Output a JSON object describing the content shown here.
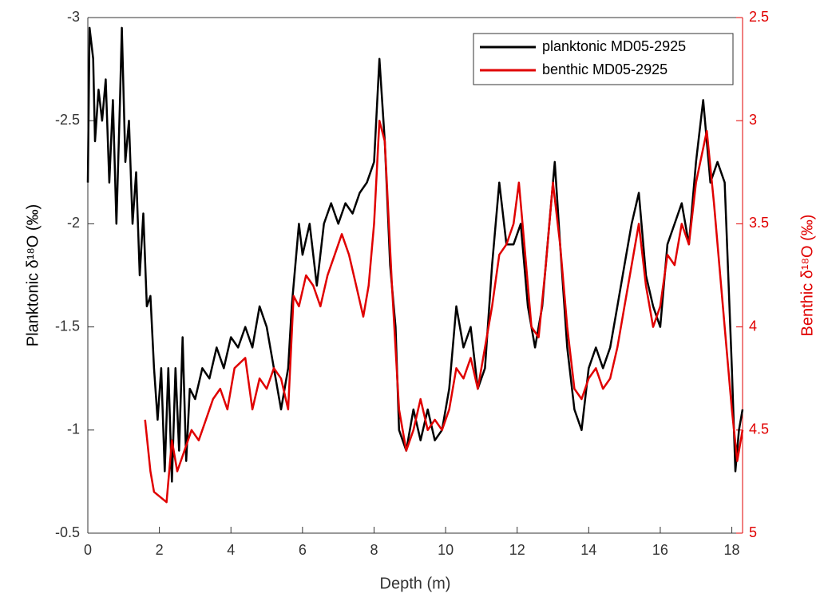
{
  "chart_data": {
    "type": "line",
    "xlabel": "Depth (m)",
    "ylabel": "Planktonic δ¹⁸O (‰)",
    "y2label": "Benthic δ¹⁸O (‰)",
    "xlim": [
      0,
      18.3
    ],
    "xticks": [
      0,
      2,
      4,
      6,
      8,
      10,
      12,
      14,
      16,
      18
    ],
    "ylim": [
      -0.5,
      -3
    ],
    "yticks": [
      -3,
      -2.5,
      -2,
      -1.5,
      -1,
      -0.5
    ],
    "y2lim": [
      5,
      2.5
    ],
    "y2ticks": [
      2.5,
      3,
      3.5,
      4,
      4.5,
      5
    ],
    "y2color": "#e00000",
    "legend": "upper right",
    "series": [
      {
        "name": "planktonic MD05-2925",
        "color": "#000000",
        "x": [
          0,
          0.05,
          0.15,
          0.2,
          0.3,
          0.4,
          0.5,
          0.6,
          0.7,
          0.8,
          0.9,
          0.95,
          1.05,
          1.15,
          1.25,
          1.35,
          1.45,
          1.55,
          1.65,
          1.75,
          1.85,
          1.95,
          2.05,
          2.15,
          2.25,
          2.35,
          2.45,
          2.55,
          2.65,
          2.75,
          2.85,
          3.0,
          3.2,
          3.4,
          3.6,
          3.8,
          4.0,
          4.2,
          4.4,
          4.6,
          4.8,
          5.0,
          5.2,
          5.4,
          5.6,
          5.7,
          5.8,
          5.9,
          6.0,
          6.2,
          6.4,
          6.6,
          6.8,
          7.0,
          7.2,
          7.4,
          7.6,
          7.8,
          8.0,
          8.15,
          8.3,
          8.45,
          8.6,
          8.7,
          8.9,
          9.1,
          9.3,
          9.5,
          9.7,
          9.9,
          10.1,
          10.3,
          10.5,
          10.7,
          10.9,
          11.1,
          11.3,
          11.5,
          11.7,
          11.9,
          12.1,
          12.3,
          12.5,
          12.7,
          12.9,
          13.05,
          13.2,
          13.4,
          13.6,
          13.8,
          14.0,
          14.2,
          14.4,
          14.6,
          14.8,
          15.0,
          15.2,
          15.4,
          15.6,
          15.8,
          16.0,
          16.2,
          16.4,
          16.6,
          16.8,
          17.0,
          17.2,
          17.4,
          17.6,
          17.8,
          18.0,
          18.1,
          18.2,
          18.3
        ],
        "values": [
          -2.2,
          -2.95,
          -2.8,
          -2.4,
          -2.65,
          -2.5,
          -2.7,
          -2.2,
          -2.6,
          -2.0,
          -2.6,
          -2.95,
          -2.3,
          -2.5,
          -2.0,
          -2.25,
          -1.75,
          -2.05,
          -1.6,
          -1.65,
          -1.3,
          -1.05,
          -1.3,
          -0.8,
          -1.3,
          -0.75,
          -1.3,
          -0.9,
          -1.45,
          -0.85,
          -1.2,
          -1.15,
          -1.3,
          -1.25,
          -1.4,
          -1.3,
          -1.45,
          -1.4,
          -1.5,
          -1.4,
          -1.6,
          -1.5,
          -1.3,
          -1.1,
          -1.3,
          -1.6,
          -1.8,
          -2.0,
          -1.85,
          -2.0,
          -1.7,
          -2.0,
          -2.1,
          -2.0,
          -2.1,
          -2.05,
          -2.15,
          -2.2,
          -2.3,
          -2.8,
          -2.4,
          -1.8,
          -1.5,
          -1.0,
          -0.9,
          -1.1,
          -0.95,
          -1.1,
          -0.95,
          -1.0,
          -1.2,
          -1.6,
          -1.4,
          -1.5,
          -1.2,
          -1.3,
          -1.8,
          -2.2,
          -1.9,
          -1.9,
          -2.0,
          -1.6,
          -1.4,
          -1.6,
          -2.0,
          -2.3,
          -1.9,
          -1.4,
          -1.1,
          -1.0,
          -1.3,
          -1.4,
          -1.3,
          -1.4,
          -1.6,
          -1.8,
          -2.0,
          -2.15,
          -1.75,
          -1.6,
          -1.5,
          -1.9,
          -2.0,
          -2.1,
          -1.9,
          -2.3,
          -2.6,
          -2.2,
          -2.3,
          -2.2,
          -1.3,
          -0.8,
          -1.0,
          -1.1
        ]
      },
      {
        "name": "benthic MD05-2925",
        "color": "#e00000",
        "axis": "y2",
        "x": [
          1.6,
          1.75,
          1.85,
          2.2,
          2.35,
          2.5,
          2.7,
          2.9,
          3.1,
          3.3,
          3.5,
          3.7,
          3.9,
          4.1,
          4.4,
          4.6,
          4.8,
          5.0,
          5.2,
          5.4,
          5.6,
          5.75,
          5.9,
          6.1,
          6.3,
          6.5,
          6.7,
          6.9,
          7.1,
          7.3,
          7.5,
          7.7,
          7.85,
          8.0,
          8.15,
          8.3,
          8.5,
          8.7,
          8.9,
          9.1,
          9.3,
          9.5,
          9.7,
          9.9,
          10.1,
          10.3,
          10.5,
          10.7,
          10.9,
          11.1,
          11.3,
          11.5,
          11.7,
          11.9,
          12.05,
          12.2,
          12.4,
          12.6,
          12.8,
          13.0,
          13.2,
          13.4,
          13.6,
          13.8,
          14.0,
          14.2,
          14.4,
          14.6,
          14.8,
          15.0,
          15.2,
          15.4,
          15.6,
          15.8,
          16.0,
          16.2,
          16.4,
          16.6,
          16.8,
          17.0,
          17.3,
          17.5,
          17.8,
          18.0,
          18.15,
          18.3
        ],
        "values": [
          4.45,
          4.7,
          4.8,
          4.85,
          4.55,
          4.7,
          4.6,
          4.5,
          4.55,
          4.45,
          4.35,
          4.3,
          4.4,
          4.2,
          4.15,
          4.4,
          4.25,
          4.3,
          4.2,
          4.25,
          4.4,
          3.85,
          3.9,
          3.75,
          3.8,
          3.9,
          3.75,
          3.65,
          3.55,
          3.65,
          3.8,
          3.95,
          3.8,
          3.5,
          3.0,
          3.1,
          3.8,
          4.4,
          4.6,
          4.5,
          4.35,
          4.5,
          4.45,
          4.5,
          4.4,
          4.2,
          4.25,
          4.15,
          4.3,
          4.1,
          3.9,
          3.65,
          3.6,
          3.5,
          3.3,
          3.6,
          4.0,
          4.05,
          3.7,
          3.3,
          3.6,
          4.0,
          4.3,
          4.35,
          4.25,
          4.2,
          4.3,
          4.25,
          4.1,
          3.9,
          3.7,
          3.5,
          3.8,
          4.0,
          3.9,
          3.65,
          3.7,
          3.5,
          3.6,
          3.3,
          3.05,
          3.4,
          4.0,
          4.4,
          4.65,
          4.5
        ]
      }
    ]
  }
}
